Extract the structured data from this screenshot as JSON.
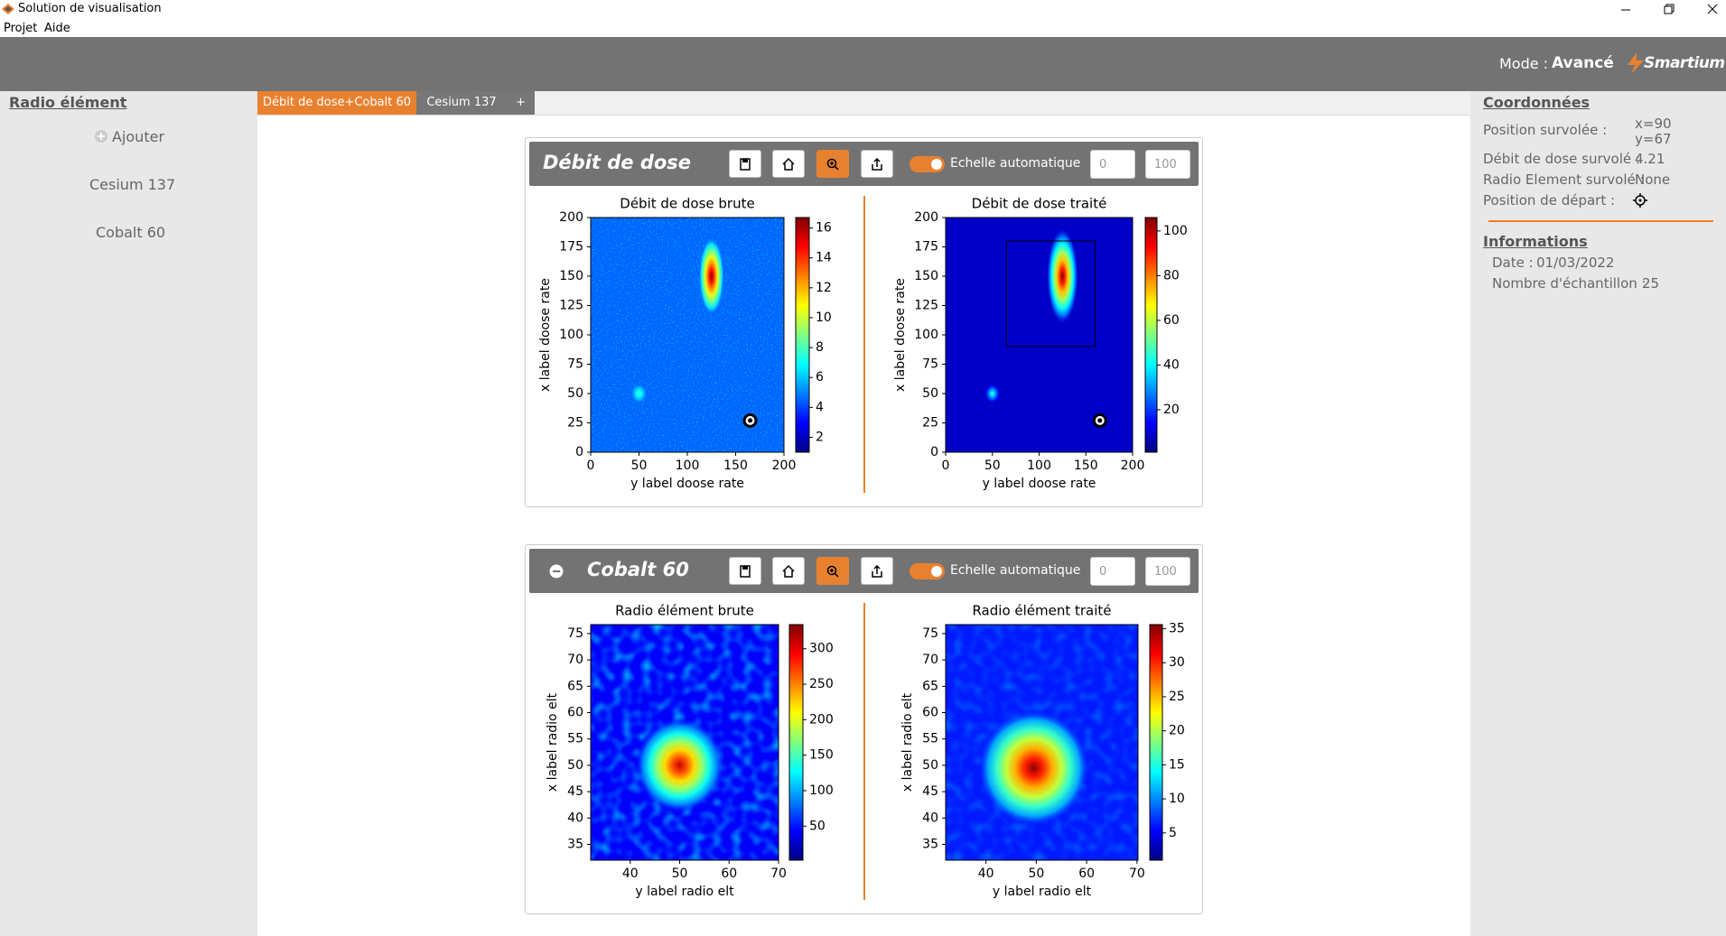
{
  "window": {
    "title": "Solution de visualisation",
    "menu": [
      "Projet",
      "Aide"
    ]
  },
  "header": {
    "mode_label": "Mode :",
    "mode_value": "Avancé",
    "logo": "Smartium"
  },
  "sidebar": {
    "title": "Radio élément",
    "add": "Ajouter",
    "items": [
      "Cesium 137",
      "Cobalt 60"
    ]
  },
  "tabs": [
    "Débit de dose+Cobalt 60",
    "Cesium 137",
    "+"
  ],
  "panels": [
    {
      "title": "Débit de dose",
      "auto_scale": "Echelle automatique",
      "min": 0,
      "max": 100,
      "charts": [
        {
          "type": "heatmap",
          "title": "Débit de dose brute",
          "xlabel": "y label doose rate",
          "ylabel": "x label doose rate",
          "xlim": [
            0,
            200
          ],
          "ylim": [
            0,
            200
          ],
          "xticks": [
            0,
            50,
            100,
            150,
            200
          ],
          "yticks": [
            0,
            25,
            50,
            75,
            100,
            125,
            150,
            175,
            200
          ],
          "clim": [
            1,
            16.7
          ],
          "cticks": [
            2,
            4,
            6,
            8,
            10,
            12,
            14,
            16
          ],
          "hotspots": [
            {
              "x": 125,
              "y": 150,
              "width": 26,
              "height": 66,
              "peak": 16.5
            },
            {
              "x": 50,
              "y": 50,
              "width": 16,
              "height": 16,
              "peak": 8
            }
          ],
          "start": {
            "x": 165,
            "y": 27
          }
        },
        {
          "type": "heatmap",
          "title": "Débit de dose traité",
          "xlabel": "y label doose rate",
          "ylabel": "x label doose rate",
          "xlim": [
            0,
            200
          ],
          "ylim": [
            0,
            200
          ],
          "xticks": [
            0,
            50,
            100,
            150,
            200
          ],
          "yticks": [
            0,
            25,
            50,
            75,
            100,
            125,
            150,
            175,
            200
          ],
          "clim": [
            1,
            106
          ],
          "cticks": [
            20,
            40,
            60,
            80,
            100
          ],
          "hotspots": [
            {
              "x": 125,
              "y": 150,
              "width": 34,
              "height": 82,
              "peak": 105
            },
            {
              "x": 50,
              "y": 50,
              "width": 16,
              "height": 16,
              "peak": 45
            }
          ],
          "roi": {
            "x": [
              65,
              160
            ],
            "y": [
              90,
              180
            ]
          },
          "start": {
            "x": 165,
            "y": 27
          }
        }
      ]
    },
    {
      "title": "Cobalt 60",
      "auto_scale": "Echelle automatique",
      "min": 0,
      "max": 100,
      "charts": [
        {
          "type": "heatmap",
          "title": "Radio élément brute",
          "xlabel": "y label radio elt",
          "ylabel": "x label radio elt",
          "xlim": [
            32,
            70
          ],
          "ylim": [
            32,
            76.7
          ],
          "xticks": [
            40,
            50,
            60,
            70
          ],
          "yticks": [
            35,
            40,
            45,
            50,
            55,
            60,
            65,
            70,
            75
          ],
          "clim": [
            2,
            334
          ],
          "cticks": [
            50,
            100,
            150,
            200,
            250,
            300
          ],
          "hotspots": [
            {
              "x": 50,
              "y": 50,
              "width": 18,
              "height": 18,
              "peak": 310
            }
          ]
        },
        {
          "type": "heatmap",
          "title": "Radio élément traité",
          "xlabel": "y label radio elt",
          "ylabel": "x label radio elt",
          "xlim": [
            32,
            70.2
          ],
          "ylim": [
            32,
            76.7
          ],
          "xticks": [
            40,
            50,
            60,
            70
          ],
          "yticks": [
            35,
            40,
            45,
            50,
            55,
            60,
            65,
            70,
            75
          ],
          "clim": [
            1,
            35.6
          ],
          "cticks": [
            5,
            10,
            15,
            20,
            25,
            30,
            35
          ],
          "hotspots": [
            {
              "x": 49.5,
              "y": 49.5,
              "width": 22,
              "height": 22,
              "peak": 35
            }
          ]
        }
      ]
    }
  ],
  "coordinates": {
    "title": "Coordonnées",
    "position_label": "Position survolée :",
    "position_x": "x=90",
    "position_y": "y=67",
    "dose_label": "Débit de dose survolé :",
    "dose_value": 4.21,
    "element_label": "Radio Element survolé :",
    "element_value": "None",
    "start_label": "Position de départ :"
  },
  "informations": {
    "title": "Informations",
    "date_label": "Date :",
    "date_value": "01/03/2022",
    "samples_label": "Nombre d'échantillon :",
    "samples_value": 25
  }
}
